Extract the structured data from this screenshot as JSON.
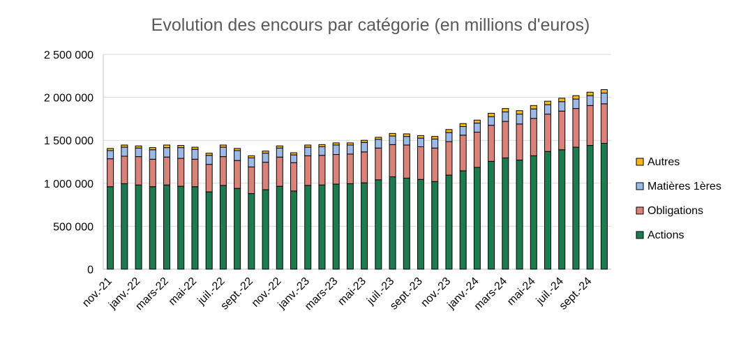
{
  "chart_data": {
    "type": "bar",
    "stacked": true,
    "title": "Evolution des encours par catégorie (en millions d'euros)",
    "xlabel": "",
    "ylabel": "",
    "ylim": [
      0,
      2500000
    ],
    "yticks": [
      0,
      500000,
      1000000,
      1500000,
      2000000,
      2500000
    ],
    "ytick_labels": [
      "0",
      "500 000",
      "1 000 000",
      "1 500 000",
      "2 000 000",
      "2 500 000"
    ],
    "grid": true,
    "legend_position": "right",
    "categories": [
      "nov.-21",
      "déc.-21",
      "janv.-22",
      "févr.-22",
      "mars-22",
      "avr.-22",
      "mai-22",
      "juin-22",
      "juil.-22",
      "août-22",
      "sept.-22",
      "oct.-22",
      "nov.-22",
      "déc.-22",
      "janv.-23",
      "févr.-23",
      "mars-23",
      "avr.-23",
      "mai-23",
      "juin-23",
      "juil.-23",
      "août-23",
      "sept.-23",
      "oct.-23",
      "nov.-23",
      "déc.-23",
      "janv.-24",
      "févr.-24",
      "mars-24",
      "avr.-24",
      "mai-24",
      "juin-24",
      "juil.-24",
      "août-24",
      "sept.-24",
      "oct.-24"
    ],
    "visible_tick_indices": [
      0,
      2,
      4,
      6,
      8,
      10,
      12,
      14,
      16,
      18,
      20,
      22,
      24,
      26,
      28,
      30,
      32,
      34
    ],
    "series": [
      {
        "name": "Actions",
        "color": "#1e7b4f",
        "values": [
          960000,
          995000,
          980000,
          960000,
          980000,
          965000,
          960000,
          900000,
          975000,
          940000,
          880000,
          925000,
          965000,
          910000,
          975000,
          980000,
          990000,
          995000,
          1005000,
          1040000,
          1075000,
          1060000,
          1045000,
          1020000,
          1095000,
          1145000,
          1185000,
          1255000,
          1295000,
          1270000,
          1320000,
          1370000,
          1390000,
          1420000,
          1440000,
          1465000
        ]
      },
      {
        "name": "Obligations",
        "color": "#d8827a",
        "values": [
          325000,
          320000,
          330000,
          320000,
          325000,
          325000,
          320000,
          320000,
          335000,
          325000,
          310000,
          320000,
          340000,
          330000,
          345000,
          345000,
          345000,
          345000,
          360000,
          370000,
          375000,
          385000,
          380000,
          390000,
          390000,
          415000,
          410000,
          420000,
          425000,
          420000,
          435000,
          435000,
          450000,
          450000,
          465000,
          460000
        ]
      },
      {
        "name": "Matières 1ères",
        "color": "#9db9e8",
        "values": [
          95000,
          105000,
          100000,
          110000,
          110000,
          125000,
          115000,
          105000,
          110000,
          115000,
          105000,
          105000,
          105000,
          90000,
          100000,
          100000,
          110000,
          105000,
          110000,
          100000,
          100000,
          100000,
          100000,
          105000,
          105000,
          100000,
          105000,
          100000,
          110000,
          115000,
          110000,
          110000,
          110000,
          110000,
          115000,
          125000
        ]
      },
      {
        "name": "Autres",
        "color": "#f5b81c",
        "values": [
          25000,
          25000,
          25000,
          25000,
          30000,
          25000,
          25000,
          25000,
          25000,
          25000,
          25000,
          25000,
          25000,
          25000,
          25000,
          25000,
          25000,
          25000,
          25000,
          25000,
          30000,
          30000,
          30000,
          30000,
          35000,
          35000,
          35000,
          40000,
          40000,
          40000,
          40000,
          40000,
          40000,
          40000,
          40000,
          40000
        ]
      }
    ],
    "legend_order": [
      "Autres",
      "Matières 1ères",
      "Obligations",
      "Actions"
    ]
  }
}
